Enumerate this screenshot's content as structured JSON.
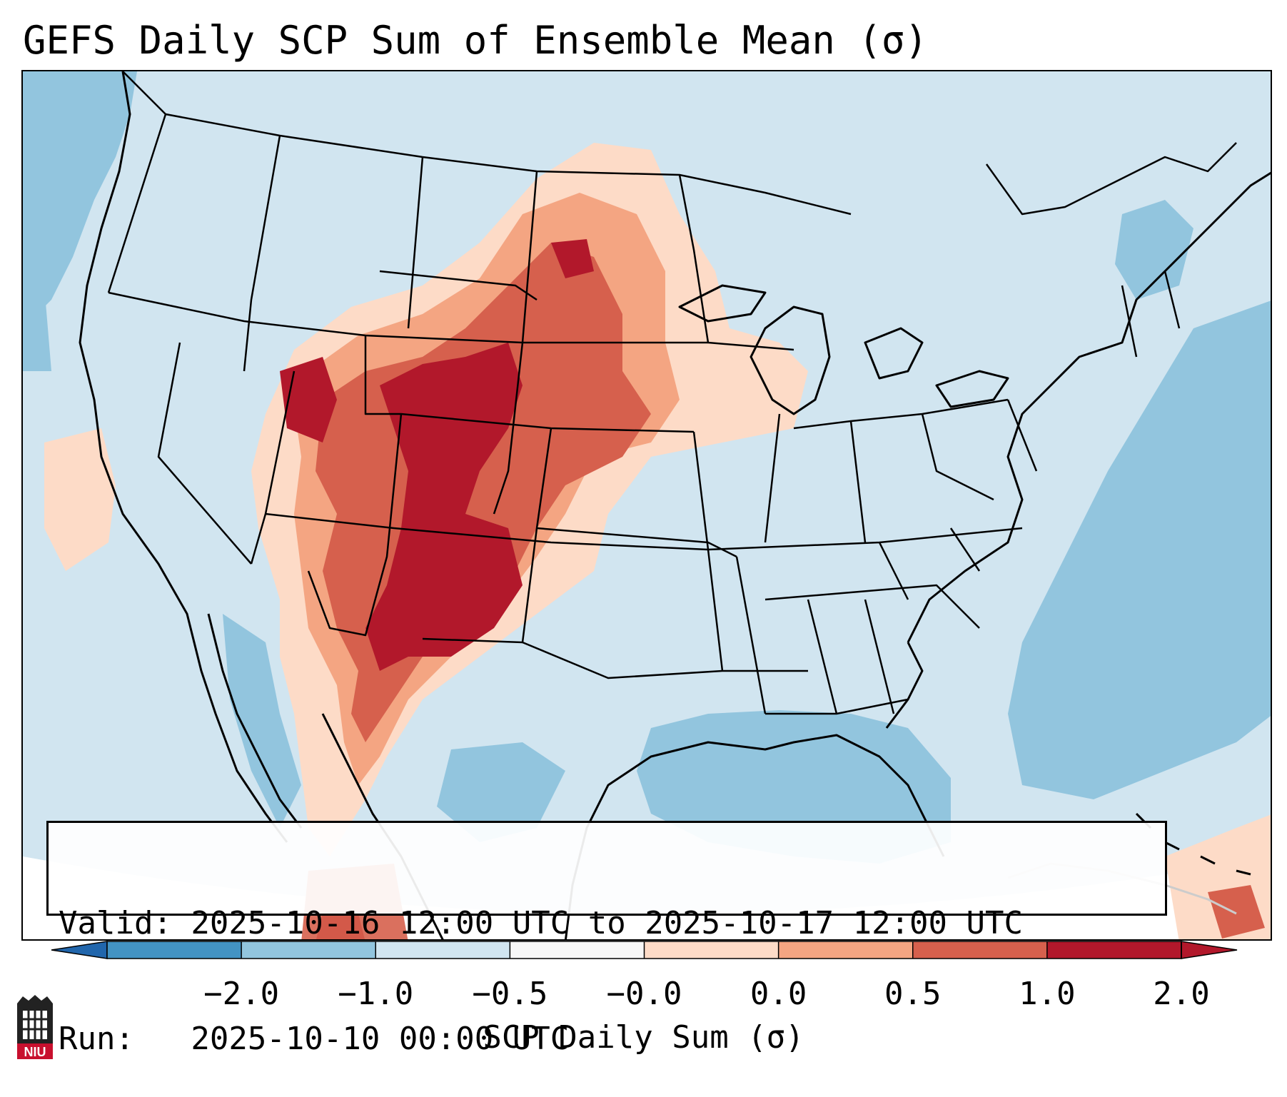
{
  "title": "GEFS Daily SCP Sum of Ensemble Mean (σ)",
  "info": {
    "valid_line": "Valid: 2025-10-16 12:00 UTC to 2025-10-17 12:00 UTC",
    "run_line": "Run:   2025-10-10 00:00 UTC"
  },
  "colorbar": {
    "label": "SCP Daily Sum (σ)",
    "ticks": [
      "−2.0",
      "−1.0",
      "−0.5",
      "−0.0",
      "0.0",
      "0.5",
      "1.0",
      "2.0"
    ],
    "colors": [
      "#4393c3",
      "#92c5de",
      "#d1e5f0",
      "#f7f7f7",
      "#fddbc7",
      "#f4a582",
      "#d6604d",
      "#b2182b"
    ],
    "under_color": "#2166ac",
    "over_color": "#b2182b"
  },
  "logo": {
    "text": "NIU",
    "color": "#c8102e"
  }
}
